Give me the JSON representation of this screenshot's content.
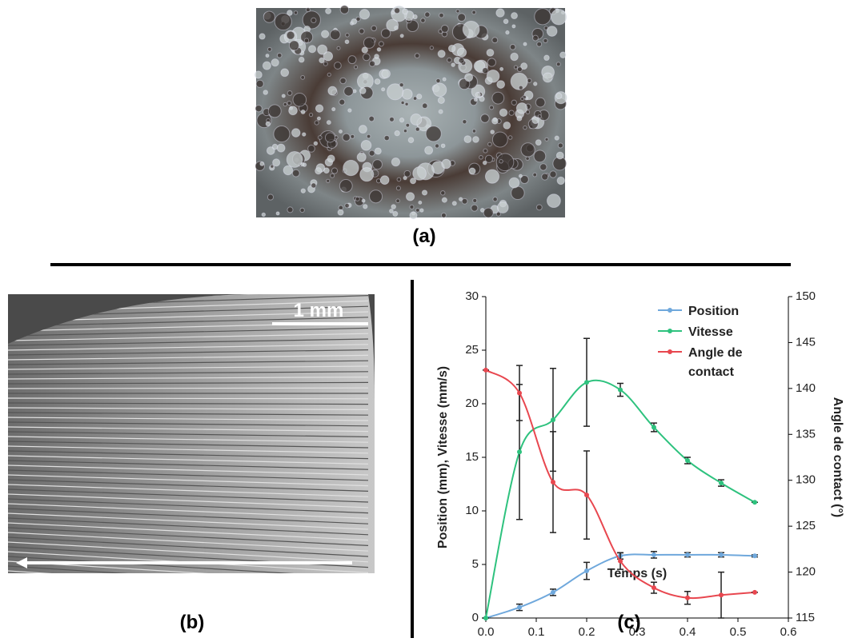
{
  "panels": {
    "a": "(a)",
    "b": "(b)",
    "c": "(c)",
    "scale_bar": "1 mm"
  },
  "chart_data": {
    "type": "line",
    "x_label": "Temps (s)",
    "y_label": "Position (mm), Vitesse (mm/s)",
    "y2_label": "Angle de contact (°)",
    "x": [
      0,
      0.0667,
      0.1333,
      0.2,
      0.2667,
      0.3333,
      0.4,
      0.4667,
      0.5333
    ],
    "xlim": [
      0,
      0.6
    ],
    "xticks": [
      {
        "value": 0,
        "label": "0.0"
      },
      0.1,
      0.2,
      0.3,
      0.4,
      0.5,
      0.6
    ],
    "ylim": [
      0,
      30
    ],
    "yticks": [
      0,
      5,
      10,
      15,
      20,
      25,
      30
    ],
    "y2lim": [
      115,
      150
    ],
    "y2ticks": [
      115,
      120,
      125,
      130,
      135,
      140,
      145,
      150
    ],
    "legend": "top-right",
    "series": [
      {
        "name": "Position",
        "color": "#6fa8dc",
        "values": [
          0,
          1,
          2.4,
          4.4,
          5.8,
          5.9,
          5.9,
          5.9,
          5.8
        ],
        "errors": [
          0,
          0.3,
          0.3,
          0.8,
          0.3,
          0.3,
          0.2,
          0.2,
          0.1
        ]
      },
      {
        "name": "Vitesse",
        "color": "#2ec27e",
        "values": [
          0,
          15.5,
          18.5,
          22,
          21.3,
          17.8,
          14.7,
          12.6,
          10.8
        ],
        "errors": [
          0,
          6.3,
          4.8,
          4.1,
          0.6,
          0.4,
          0.3,
          0.3,
          0
        ]
      },
      {
        "name": "Angle de contact",
        "color": "#e8474f",
        "axis": "y2",
        "values": [
          142,
          139.5,
          129.8,
          128.4,
          121.2,
          118.3,
          117.2,
          117.5,
          117.8
        ],
        "errors": [
          0,
          3,
          5.5,
          4.8,
          0.9,
          0.6,
          0.7,
          2.5,
          0
        ]
      }
    ]
  }
}
